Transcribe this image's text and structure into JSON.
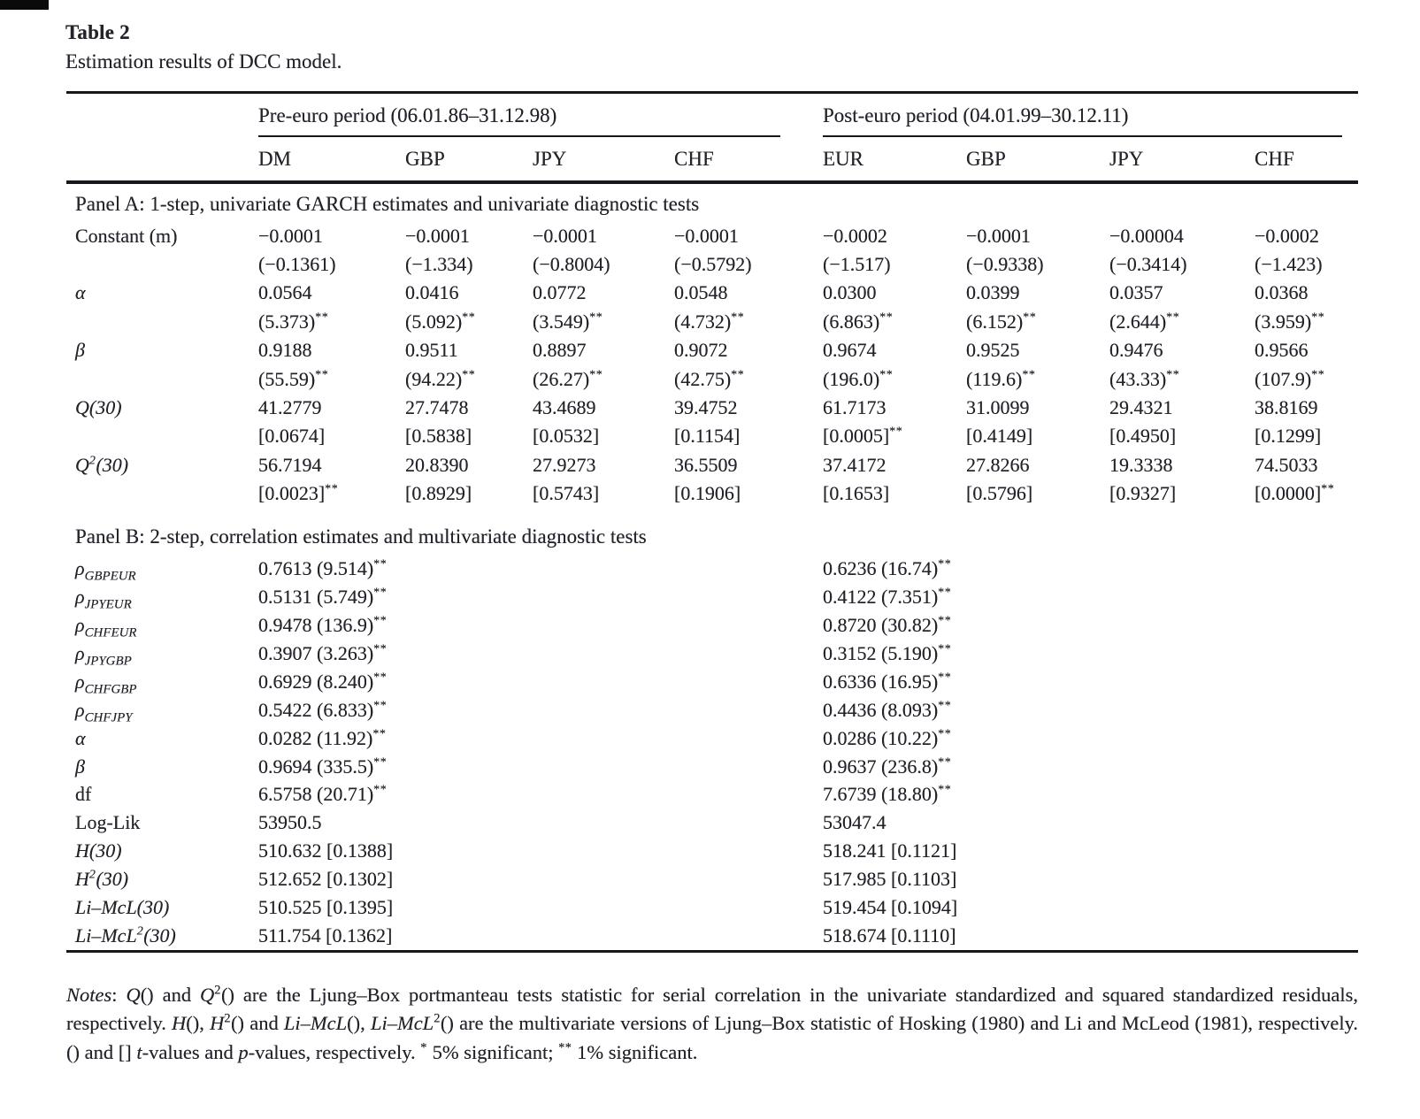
{
  "title": "Table 2",
  "caption": "Estimation results of DCC model.",
  "col_groups": [
    {
      "title": "Pre-euro period (06.01.86–31.12.98)",
      "columns": [
        "DM",
        "GBP",
        "JPY",
        "CHF"
      ]
    },
    {
      "title": "Post-euro period (04.01.99–30.12.11)",
      "columns": [
        "EUR",
        "GBP",
        "JPY",
        "CHF"
      ]
    }
  ],
  "panels": [
    {
      "title": "Panel A: 1-step, univariate GARCH estimates and univariate diagnostic tests",
      "rows": [
        {
          "label": "Constant (m)",
          "italic": false,
          "lines": [
            [
              "−0.0001",
              "−0.0001",
              "−0.0001",
              "−0.0001",
              "−0.0002",
              "−0.0001",
              "−0.00004",
              "−0.0002"
            ],
            [
              "(−0.1361)",
              "(−1.334)",
              "(−0.8004)",
              "(−0.5792)",
              "(−1.517)",
              "(−0.9338)",
              "(−0.3414)",
              "(−1.423)"
            ]
          ]
        },
        {
          "label": "α",
          "italic": true,
          "lines": [
            [
              "0.0564",
              "0.0416",
              "0.0772",
              "0.0548",
              "0.0300",
              "0.0399",
              "0.0357",
              "0.0368"
            ],
            [
              "(5.373)^{**}",
              "(5.092)^{**}",
              "(3.549)^{**}",
              "(4.732)^{**}",
              "(6.863)^{**}",
              "(6.152)^{**}",
              "(2.644)^{**}",
              "(3.959)^{**}"
            ]
          ]
        },
        {
          "label": "β",
          "italic": true,
          "lines": [
            [
              "0.9188",
              "0.9511",
              "0.8897",
              "0.9072",
              "0.9674",
              "0.9525",
              "0.9476",
              "0.9566"
            ],
            [
              "(55.59)^{**}",
              "(94.22)^{**}",
              "(26.27)^{**}",
              "(42.75)^{**}",
              "(196.0)^{**}",
              "(119.6)^{**}",
              "(43.33)^{**}",
              "(107.9)^{**}"
            ]
          ]
        },
        {
          "label": "Q(30)",
          "italic": true,
          "lines": [
            [
              "41.2779",
              "27.7478",
              "43.4689",
              "39.4752",
              "61.7173",
              "31.0099",
              "29.4321",
              "38.8169"
            ],
            [
              "[0.0674]",
              "[0.5838]",
              "[0.0532]",
              "[0.1154]",
              "[0.0005]^{**}",
              "[0.4149]",
              "[0.4950]",
              "[0.1299]"
            ]
          ]
        },
        {
          "label": "Q^{2}(30)",
          "italic": true,
          "lines": [
            [
              "56.7194",
              "20.8390",
              "27.9273",
              "36.5509",
              "37.4172",
              "27.8266",
              "19.3338",
              "74.5033"
            ],
            [
              "[0.0023]^{**}",
              "[0.8929]",
              "[0.5743]",
              "[0.1906]",
              "[0.1653]",
              "[0.5796]",
              "[0.9327]",
              "[0.0000]^{**}"
            ]
          ]
        }
      ]
    },
    {
      "title": "Panel B: 2-step, correlation estimates and multivariate diagnostic tests",
      "rows": [
        {
          "label": "ρ_{GBPEUR}",
          "italic": true,
          "pre": "0.7613 (9.514)^{**}",
          "post": "0.6236 (16.74)^{**}"
        },
        {
          "label": "ρ_{JPYEUR}",
          "italic": true,
          "pre": "0.5131 (5.749)^{**}",
          "post": "0.4122 (7.351)^{**}"
        },
        {
          "label": "ρ_{CHFEUR}",
          "italic": true,
          "pre": "0.9478 (136.9)^{**}",
          "post": "0.8720 (30.82)^{**}"
        },
        {
          "label": "ρ_{JPYGBP}",
          "italic": true,
          "pre": "0.3907 (3.263)^{**}",
          "post": "0.3152 (5.190)^{**}"
        },
        {
          "label": "ρ_{CHFGBP}",
          "italic": true,
          "pre": "0.6929 (8.240)^{**}",
          "post": "0.6336 (16.95)^{**}"
        },
        {
          "label": "ρ_{CHFJPY}",
          "italic": true,
          "pre": "0.5422 (6.833)^{**}",
          "post": "0.4436 (8.093)^{**}"
        },
        {
          "label": "α",
          "italic": true,
          "pre": "0.0282 (11.92)^{**}",
          "post": "0.0286 (10.22)^{**}"
        },
        {
          "label": "β",
          "italic": true,
          "pre": "0.9694 (335.5)^{**}",
          "post": "0.9637 (236.8)^{**}"
        },
        {
          "label": "df",
          "italic": false,
          "pre": "6.5758 (20.71)^{**}",
          "post": "7.6739 (18.80)^{**}"
        },
        {
          "label": "Log-Lik",
          "italic": false,
          "pre": "53950.5",
          "post": "53047.4"
        },
        {
          "label": "H(30)",
          "italic": true,
          "pre": "510.632 [0.1388]",
          "post": "518.241 [0.1121]"
        },
        {
          "label": "H^{2}(30)",
          "italic": true,
          "pre": "512.652 [0.1302]",
          "post": "517.985 [0.1103]"
        },
        {
          "label": "Li–McL(30)",
          "italic": true,
          "pre": "510.525 [0.1395]",
          "post": "519.454 [0.1094]"
        },
        {
          "label": "Li–McL^{2}(30)",
          "italic": true,
          "pre": "511.754 [0.1362]",
          "post": "518.674 [0.1110]"
        }
      ]
    }
  ],
  "notes": "{{Notes}}: {{Q}}() and {{Q}}^{2}() are the Ljung–Box portmanteau tests statistic for serial correlation in the univariate standardized and squared standardized residuals, respectively. {{H}}(), {{H}}^{2}() and {{Li–McL}}(), {{Li–McL}}^{2}() are the multivariate versions of Ljung–Box statistic of Hosking (1980) and Li and McLeod (1981), respectively. () and [] {{t}}-values and {{p}}-values, respectively. ^{*} 5% significant; ^{**} 1% significant."
}
